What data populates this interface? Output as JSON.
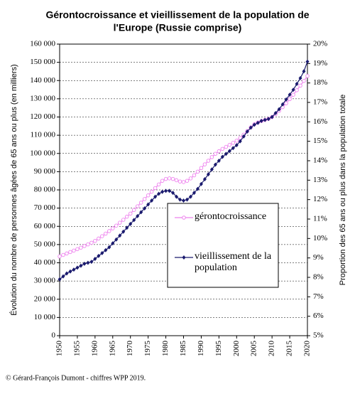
{
  "chart_data": {
    "type": "line",
    "title": [
      "Gérontocroissance et vieillissement de la population de",
      "l'Europe (Russie comprise)"
    ],
    "y_label": "Évolution du nombre de personnes âgées de 65 ans ou plus (en milliers)",
    "y2_label": "Proportion des 65 ans ou plus dans la population totale",
    "source": "© Gérard-François Dumont - chiffres WPP 2019.",
    "x": [
      1950,
      1951,
      1952,
      1953,
      1954,
      1955,
      1956,
      1957,
      1958,
      1959,
      1960,
      1961,
      1962,
      1963,
      1964,
      1965,
      1966,
      1967,
      1968,
      1969,
      1970,
      1971,
      1972,
      1973,
      1974,
      1975,
      1976,
      1977,
      1978,
      1979,
      1980,
      1981,
      1982,
      1983,
      1984,
      1985,
      1986,
      1987,
      1988,
      1989,
      1990,
      1991,
      1992,
      1993,
      1994,
      1995,
      1996,
      1997,
      1998,
      1999,
      2000,
      2001,
      2002,
      2003,
      2004,
      2005,
      2006,
      2007,
      2008,
      2009,
      2010,
      2011,
      2012,
      2013,
      2014,
      2015,
      2016,
      2017,
      2018,
      2019,
      2020
    ],
    "xlim": [
      1950,
      2020
    ],
    "xticks": [
      1950,
      1955,
      1960,
      1965,
      1970,
      1975,
      1980,
      1985,
      1990,
      1995,
      2000,
      2005,
      2010,
      2015,
      2020
    ],
    "ylim": [
      0,
      160000
    ],
    "yticks": [
      {
        "value": 0,
        "label": "0"
      },
      {
        "value": 10000,
        "label": "10 000"
      },
      {
        "value": 20000,
        "label": "20 000"
      },
      {
        "value": 30000,
        "label": "30 000"
      },
      {
        "value": 40000,
        "label": "40 000"
      },
      {
        "value": 50000,
        "label": "50 000"
      },
      {
        "value": 60000,
        "label": "60 000"
      },
      {
        "value": 70000,
        "label": "70 000"
      },
      {
        "value": 80000,
        "label": "80 000"
      },
      {
        "value": 90000,
        "label": "90 000"
      },
      {
        "value": 100000,
        "label": "100 000"
      },
      {
        "value": 110000,
        "label": "110 000"
      },
      {
        "value": 120000,
        "label": "120 000"
      },
      {
        "value": 130000,
        "label": "130 000"
      },
      {
        "value": 140000,
        "label": "140 000"
      },
      {
        "value": 150000,
        "label": "150 000"
      },
      {
        "value": 160000,
        "label": "160 000"
      }
    ],
    "y2lim": [
      5,
      20
    ],
    "y2ticks": [
      {
        "value": 5,
        "label": "5%"
      },
      {
        "value": 6,
        "label": "6%"
      },
      {
        "value": 7,
        "label": "7%"
      },
      {
        "value": 8,
        "label": "8%"
      },
      {
        "value": 9,
        "label": "9%"
      },
      {
        "value": 10,
        "label": "10%"
      },
      {
        "value": 11,
        "label": "11%"
      },
      {
        "value": 12,
        "label": "12%"
      },
      {
        "value": 13,
        "label": "13%"
      },
      {
        "value": 14,
        "label": "14%"
      },
      {
        "value": 15,
        "label": "15%"
      },
      {
        "value": 16,
        "label": "16%"
      },
      {
        "value": 17,
        "label": "17%"
      },
      {
        "value": 18,
        "label": "18%"
      },
      {
        "value": 19,
        "label": "19%"
      },
      {
        "value": 20,
        "label": "20%"
      }
    ],
    "grid": true,
    "series": [
      {
        "name": "gérontocroissance",
        "color": "#ee82ee",
        "marker": "circle",
        "values": [
          43500,
          44300,
          45100,
          45900,
          46700,
          47500,
          48300,
          49200,
          50100,
          51000,
          52000,
          53300,
          54600,
          56000,
          57400,
          58900,
          60400,
          62000,
          63600,
          65300,
          67000,
          69000,
          71000,
          73000,
          75000,
          77000,
          79000,
          81000,
          83000,
          85000,
          86000,
          86300,
          86000,
          85300,
          84600,
          84300,
          85000,
          86300,
          88000,
          90000,
          92000,
          94000,
          96000,
          98000,
          99800,
          101200,
          102500,
          103600,
          104700,
          105800,
          107000,
          108500,
          110300,
          112300,
          114300,
          116000,
          117000,
          117800,
          118400,
          119000,
          120000,
          121600,
          123400,
          125400,
          127500,
          129800,
          132200,
          134700,
          137200,
          139800,
          142500
        ]
      },
      {
        "name": "vieillissement de la population",
        "color": "#1a1a6e",
        "marker": "diamond",
        "axis": "y2",
        "values": [
          7.9,
          8.05,
          8.2,
          8.3,
          8.4,
          8.5,
          8.6,
          8.7,
          8.75,
          8.8,
          8.95,
          9.1,
          9.25,
          9.4,
          9.55,
          9.75,
          9.95,
          10.15,
          10.35,
          10.55,
          10.75,
          10.95,
          11.15,
          11.35,
          11.55,
          11.75,
          11.95,
          12.15,
          12.3,
          12.4,
          12.45,
          12.45,
          12.35,
          12.15,
          12.0,
          11.95,
          12.0,
          12.15,
          12.35,
          12.55,
          12.8,
          13.05,
          13.3,
          13.55,
          13.8,
          14.0,
          14.2,
          14.35,
          14.5,
          14.65,
          14.8,
          15.0,
          15.25,
          15.5,
          15.7,
          15.85,
          15.95,
          16.05,
          16.1,
          16.15,
          16.25,
          16.45,
          16.65,
          16.9,
          17.15,
          17.4,
          17.65,
          17.95,
          18.25,
          18.6,
          19.1
        ]
      }
    ]
  }
}
